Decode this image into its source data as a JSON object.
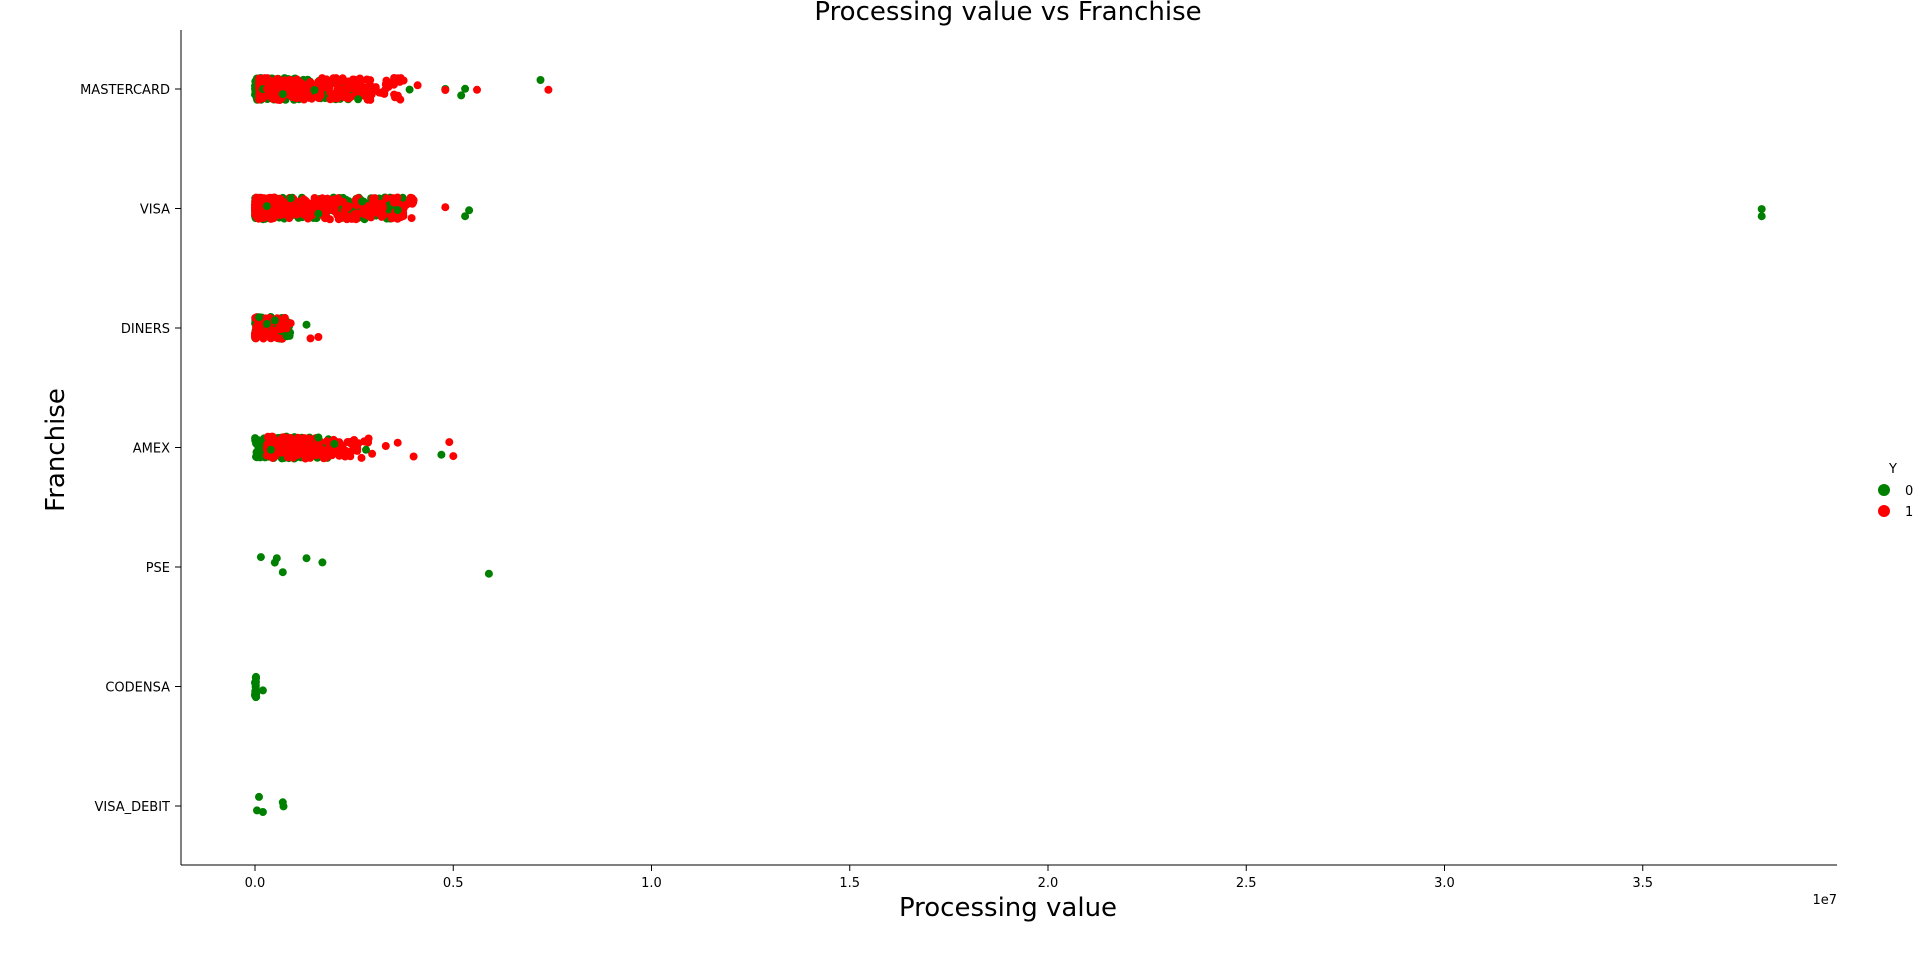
{
  "chart_data": {
    "type": "scatter",
    "subtype": "strip",
    "title": "Processing value vs Franchise",
    "xlabel": "Processing value",
    "ylabel": "Franchise",
    "x_offset_label": "1e7",
    "xlim": [
      -1800000,
      40000000
    ],
    "xticks": [
      0,
      5000000,
      10000000,
      15000000,
      20000000,
      25000000,
      30000000,
      35000000
    ],
    "xtick_labels": [
      "0.0",
      "0.5",
      "1.0",
      "1.5",
      "2.0",
      "2.5",
      "3.0",
      "3.5"
    ],
    "categories": [
      "MASTERCARD",
      "VISA",
      "DINERS",
      "AMEX",
      "PSE",
      "CODENSA",
      "VISA_DEBIT"
    ],
    "legend": {
      "title": "Y",
      "placement": "right",
      "entries": [
        "0",
        "1"
      ]
    },
    "grid": false,
    "colors": {
      "0": "#008000",
      "1": "#ff0000"
    },
    "series": [
      {
        "name": "0",
        "color": "#008000",
        "points": [
          [
            "MASTERCARD",
            200000
          ],
          [
            "MASTERCARD",
            700000
          ],
          [
            "MASTERCARD",
            1500000
          ],
          [
            "MASTERCARD",
            2600000
          ],
          [
            "MASTERCARD",
            3900000
          ],
          [
            "MASTERCARD",
            4800000
          ],
          [
            "MASTERCARD",
            5200000
          ],
          [
            "MASTERCARD",
            5300000
          ],
          [
            "MASTERCARD",
            7200000
          ],
          [
            "VISA",
            300000
          ],
          [
            "VISA",
            900000
          ],
          [
            "VISA",
            1600000
          ],
          [
            "VISA",
            2700000
          ],
          [
            "VISA",
            3600000
          ],
          [
            "VISA",
            5300000
          ],
          [
            "VISA",
            5400000
          ],
          [
            "VISA",
            38000000
          ],
          [
            "VISA",
            38000000
          ],
          [
            "DINERS",
            100000
          ],
          [
            "DINERS",
            300000
          ],
          [
            "DINERS",
            500000
          ],
          [
            "DINERS",
            800000
          ],
          [
            "DINERS",
            1300000
          ],
          [
            "AMEX",
            100000
          ],
          [
            "AMEX",
            400000
          ],
          [
            "AMEX",
            1600000
          ],
          [
            "AMEX",
            2000000
          ],
          [
            "AMEX",
            2800000
          ],
          [
            "AMEX",
            4700000
          ],
          [
            "PSE",
            150000
          ],
          [
            "PSE",
            500000
          ],
          [
            "PSE",
            550000
          ],
          [
            "PSE",
            700000
          ],
          [
            "PSE",
            1300000
          ],
          [
            "PSE",
            1700000
          ],
          [
            "PSE",
            5900000
          ],
          [
            "CODENSA",
            20000
          ],
          [
            "CODENSA",
            30000
          ],
          [
            "CODENSA",
            200000
          ],
          [
            "VISA_DEBIT",
            50000
          ],
          [
            "VISA_DEBIT",
            100000
          ],
          [
            "VISA_DEBIT",
            200000
          ],
          [
            "VISA_DEBIT",
            700000
          ],
          [
            "VISA_DEBIT",
            720000
          ]
        ]
      },
      {
        "name": "1",
        "color": "#ff0000",
        "points": [
          [
            "MASTERCARD",
            300000
          ],
          [
            "MASTERCARD",
            1000000
          ],
          [
            "MASTERCARD",
            2200000
          ],
          [
            "MASTERCARD",
            3300000
          ],
          [
            "MASTERCARD",
            4100000
          ],
          [
            "MASTERCARD",
            4800000
          ],
          [
            "MASTERCARD",
            5600000
          ],
          [
            "MASTERCARD",
            7400000
          ],
          [
            "VISA",
            400000
          ],
          [
            "VISA",
            1200000
          ],
          [
            "VISA",
            2500000
          ],
          [
            "VISA",
            3500000
          ],
          [
            "VISA",
            4000000
          ],
          [
            "VISA",
            4800000
          ],
          [
            "DINERS",
            200000
          ],
          [
            "DINERS",
            900000
          ],
          [
            "DINERS",
            1400000
          ],
          [
            "DINERS",
            1600000
          ],
          [
            "AMEX",
            600000
          ],
          [
            "AMEX",
            1500000
          ],
          [
            "AMEX",
            2500000
          ],
          [
            "AMEX",
            3300000
          ],
          [
            "AMEX",
            3600000
          ],
          [
            "AMEX",
            4000000
          ],
          [
            "AMEX",
            4900000
          ],
          [
            "AMEX",
            5000000
          ]
        ]
      }
    ],
    "dense_bands": [
      {
        "category": "MASTERCARD",
        "series": "0",
        "x_from": 0,
        "x_to": 2600000
      },
      {
        "category": "MASTERCARD",
        "series": "1",
        "x_from": 100000,
        "x_to": 3800000
      },
      {
        "category": "VISA",
        "series": "0",
        "x_from": 0,
        "x_to": 3800000
      },
      {
        "category": "VISA",
        "series": "1",
        "x_from": 0,
        "x_to": 4000000
      },
      {
        "category": "DINERS",
        "series": "0",
        "x_from": 0,
        "x_to": 900000
      },
      {
        "category": "DINERS",
        "series": "1",
        "x_from": 0,
        "x_to": 800000
      },
      {
        "category": "AMEX",
        "series": "0",
        "x_from": 0,
        "x_to": 2000000
      },
      {
        "category": "AMEX",
        "series": "1",
        "x_from": 300000,
        "x_to": 3000000
      },
      {
        "category": "CODENSA",
        "series": "0",
        "x_from": 0,
        "x_to": 30000
      }
    ]
  }
}
